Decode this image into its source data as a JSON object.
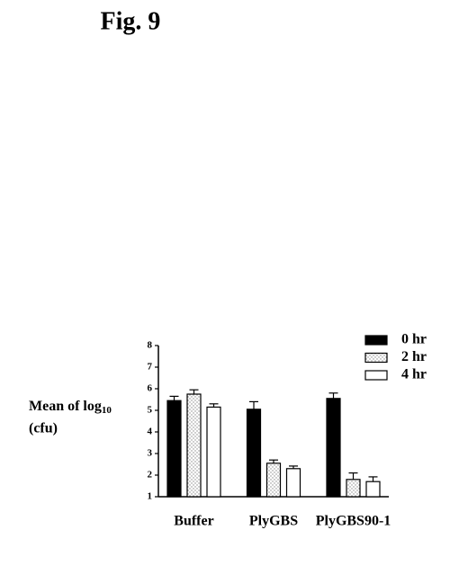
{
  "fig_label": "Fig. 9",
  "chart_data": {
    "type": "bar",
    "y_label": {
      "text": "Mean of log",
      "subscript": "10",
      "line2": "(cfu)"
    },
    "categories": [
      "Buffer",
      "PlyGBS",
      "PlyGBS90-1"
    ],
    "series": [
      {
        "name": "0 hr",
        "color": "#000000",
        "values": [
          5.45,
          5.05,
          5.55
        ],
        "errors": [
          0.2,
          0.35,
          0.25
        ]
      },
      {
        "name": "2 hr",
        "color": "#8a8a8a",
        "pattern": "stipple",
        "values": [
          5.75,
          2.55,
          1.8
        ],
        "errors": [
          0.2,
          0.15,
          0.3
        ]
      },
      {
        "name": "4 hr",
        "color": "#ffffff",
        "values": [
          5.15,
          2.3,
          1.7
        ],
        "errors": [
          0.15,
          0.12,
          0.22
        ]
      }
    ],
    "ylim": [
      1,
      8
    ],
    "yticks": [
      1,
      2,
      3,
      4,
      5,
      6,
      7,
      8
    ]
  }
}
